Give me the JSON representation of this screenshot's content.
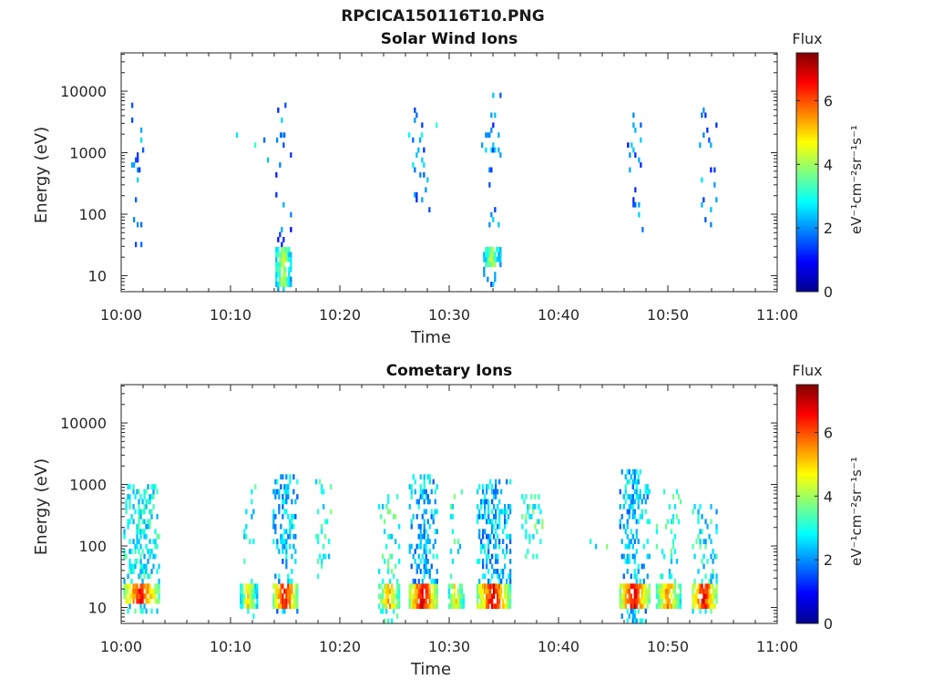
{
  "figure": {
    "title": "RPCICA150116T10.PNG"
  },
  "colormap": [
    "#00008f",
    "#0000ff",
    "#0080ff",
    "#00ffff",
    "#80ff80",
    "#ffff00",
    "#ff8000",
    "#ff0000",
    "#800000"
  ],
  "chart_data": [
    {
      "type": "heatmap",
      "title": "Solar Wind Ions",
      "xlabel": "Time",
      "ylabel": "Energy (eV)",
      "x_ticks": [
        "10:00",
        "10:10",
        "10:20",
        "10:30",
        "10:40",
        "10:50",
        "11:00"
      ],
      "xlim": [
        "10:00",
        "11:00"
      ],
      "y_scale": "log",
      "y_ticks": [
        10,
        100,
        1000,
        10000
      ],
      "ylim": [
        5.5,
        42000
      ],
      "colorbar": {
        "label": "Flux",
        "unit": "eV⁻¹cm⁻²sr⁻¹s⁻¹",
        "ticks": [
          0,
          2,
          4,
          6
        ],
        "range": [
          0,
          7.5
        ]
      },
      "bursts": [
        {
          "t": 1.4,
          "w": 1.3,
          "e_min": 30,
          "e_max": 15000,
          "low_energy": [
            14,
            26
          ],
          "low_flux": 4.6,
          "high_flux": 1.9,
          "density": 0.16
        },
        {
          "t": 14.8,
          "w": 1.4,
          "e_min": 6,
          "e_max": 12000,
          "low_energy": [
            7,
            32
          ],
          "low_flux": 4.3,
          "high_flux": 1.8,
          "density": 0.12
        },
        {
          "t": 27.4,
          "w": 1.6,
          "e_min": 100,
          "e_max": 6000,
          "low_energy": [
            14,
            26
          ],
          "low_flux": 4.0,
          "high_flux": 2.0,
          "density": 0.12
        },
        {
          "t": 33.9,
          "w": 1.6,
          "e_min": 7,
          "e_max": 9000,
          "low_energy": [
            14,
            30
          ],
          "low_flux": 4.1,
          "high_flux": 1.9,
          "density": 0.12
        },
        {
          "t": 46.9,
          "w": 1.6,
          "e_min": 50,
          "e_max": 5500,
          "low_energy": [
            14,
            26
          ],
          "low_flux": 4.0,
          "high_flux": 1.8,
          "density": 0.12
        },
        {
          "t": 53.6,
          "w": 1.5,
          "e_min": 50,
          "e_max": 5000,
          "low_energy": [
            14,
            26
          ],
          "low_flux": 4.0,
          "high_flux": 1.9,
          "density": 0.12
        },
        {
          "t": 12.5,
          "w": 5.0,
          "e_min": 700,
          "e_max": 2200,
          "low_energy": null,
          "low_flux": 0,
          "high_flux": 2.4,
          "density": 0.03
        },
        {
          "t": 29.0,
          "w": 8.5,
          "e_min": 1200,
          "e_max": 10000,
          "low_energy": null,
          "low_flux": 0,
          "high_flux": 2.5,
          "density": 0.02
        }
      ]
    },
    {
      "type": "heatmap",
      "title": "Cometary Ions",
      "xlabel": "Time",
      "ylabel": "Energy (eV)",
      "x_ticks": [
        "10:00",
        "10:10",
        "10:20",
        "10:30",
        "10:40",
        "10:50",
        "11:00"
      ],
      "xlim": [
        "10:00",
        "11:00"
      ],
      "y_scale": "log",
      "y_ticks": [
        10,
        100,
        1000,
        10000
      ],
      "ylim": [
        5.5,
        42000
      ],
      "colorbar": {
        "label": "Flux",
        "unit": "eV⁻¹cm⁻²sr⁻¹s⁻¹",
        "ticks": [
          0,
          2,
          4,
          6
        ],
        "range": [
          0,
          7.5
        ]
      },
      "bursts": [
        {
          "t": 1.8,
          "w": 3.2,
          "e_min": 8,
          "e_max": 1100,
          "low_energy": [
            12,
            26
          ],
          "low_flux": 6.5,
          "high_flux": 2.8,
          "density": 0.5
        },
        {
          "t": 11.6,
          "w": 1.5,
          "e_min": 6,
          "e_max": 1000,
          "low_energy": [
            10,
            24
          ],
          "low_flux": 4.8,
          "high_flux": 2.9,
          "density": 0.1
        },
        {
          "t": 15.0,
          "w": 2.3,
          "e_min": 8,
          "e_max": 1500,
          "low_energy": [
            10,
            25
          ],
          "low_flux": 6.6,
          "high_flux": 2.4,
          "density": 0.4
        },
        {
          "t": 18.5,
          "w": 1.5,
          "e_min": 30,
          "e_max": 1300,
          "low_energy": [
            10,
            24
          ],
          "low_flux": 5.7,
          "high_flux": 3.0,
          "density": 0.18
        },
        {
          "t": 24.5,
          "w": 2.0,
          "e_min": 6,
          "e_max": 900,
          "low_energy": [
            10,
            25
          ],
          "low_flux": 5.3,
          "high_flux": 3.1,
          "density": 0.18
        },
        {
          "t": 27.6,
          "w": 2.6,
          "e_min": 10,
          "e_max": 1600,
          "low_energy": [
            10,
            25
          ],
          "low_flux": 6.8,
          "high_flux": 2.3,
          "density": 0.45
        },
        {
          "t": 30.6,
          "w": 1.4,
          "e_min": 10,
          "e_max": 900,
          "low_energy": [
            10,
            24
          ],
          "low_flux": 5.0,
          "high_flux": 3.0,
          "density": 0.2
        },
        {
          "t": 34.0,
          "w": 3.0,
          "e_min": 10,
          "e_max": 1300,
          "low_energy": [
            10,
            25
          ],
          "low_flux": 6.7,
          "high_flux": 2.3,
          "density": 0.5
        },
        {
          "t": 37.6,
          "w": 2.0,
          "e_min": 60,
          "e_max": 900,
          "low_energy": [
            10,
            24
          ],
          "low_flux": 5.6,
          "high_flux": 3.2,
          "density": 0.28
        },
        {
          "t": 46.9,
          "w": 2.7,
          "e_min": 6,
          "e_max": 1800,
          "low_energy": [
            10,
            25
          ],
          "low_flux": 6.8,
          "high_flux": 2.4,
          "density": 0.45
        },
        {
          "t": 50.0,
          "w": 2.2,
          "e_min": 8,
          "e_max": 800,
          "low_energy": [
            10,
            24
          ],
          "low_flux": 5.6,
          "high_flux": 3.0,
          "density": 0.2
        },
        {
          "t": 53.3,
          "w": 2.2,
          "e_min": 8,
          "e_max": 500,
          "low_energy": [
            10,
            25
          ],
          "low_flux": 6.7,
          "high_flux": 2.8,
          "density": 0.35
        },
        {
          "t": 43.5,
          "w": 2.0,
          "e_min": 70,
          "e_max": 150,
          "low_energy": null,
          "low_flux": 0,
          "high_flux": 3.0,
          "density": 0.05
        }
      ]
    }
  ]
}
